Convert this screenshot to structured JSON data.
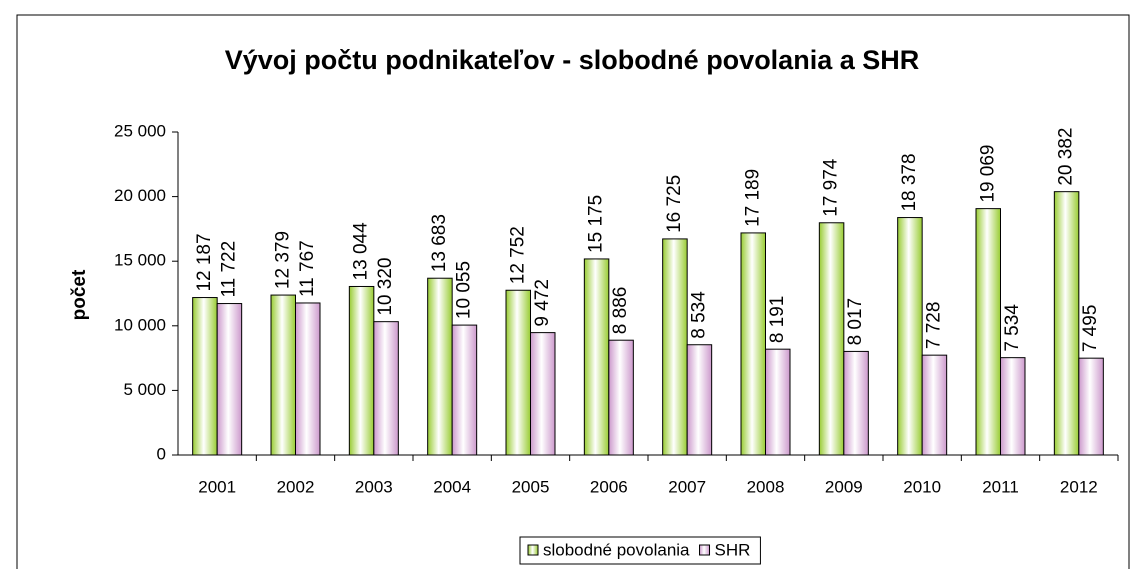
{
  "chart_data": {
    "type": "bar",
    "title": "Vývoj počtu podnikateľov - slobodné povolania a SHR",
    "y_label": "počet",
    "categories": [
      "2001",
      "2002",
      "2003",
      "2004",
      "2005",
      "2006",
      "2007",
      "2008",
      "2009",
      "2010",
      "2011",
      "2012"
    ],
    "series": [
      {
        "name": "slobodné povolania",
        "color": "#99cc33",
        "values": [
          12187,
          12379,
          13044,
          13683,
          12752,
          15175,
          16725,
          17189,
          17974,
          18378,
          19069,
          20382
        ],
        "value_labels": [
          "12 187",
          "12 379",
          "13 044",
          "13 683",
          "12 752",
          "15 175",
          "16 725",
          "17 189",
          "17 974",
          "18 378",
          "19 069",
          "20 382"
        ]
      },
      {
        "name": "SHR",
        "color": "#cc99cc",
        "values": [
          11722,
          11767,
          10320,
          10055,
          9472,
          8886,
          8534,
          8191,
          8017,
          7728,
          7534,
          7495
        ],
        "value_labels": [
          "11 722",
          "11 767",
          "10 320",
          "10 055",
          "9 472",
          "8 886",
          "8 534",
          "8 191",
          "8 017",
          "7 728",
          "7 534",
          "7 495"
        ]
      }
    ],
    "ylim": [
      0,
      25000
    ],
    "yticks": [
      0,
      {
        "value": 5000,
        "label": "5 000"
      },
      {
        "value": 10000,
        "label": "10 000"
      },
      {
        "value": 15000,
        "label": "15 000"
      },
      {
        "value": 20000,
        "label": "20 000"
      },
      {
        "value": 25000,
        "label": "25 000"
      }
    ],
    "legend": "bottom"
  }
}
